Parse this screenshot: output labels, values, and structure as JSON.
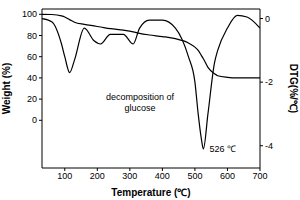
{
  "chart_data": {
    "type": "line",
    "x_label": "Temperature (℃)",
    "y_label": "Weight (%)",
    "y2_label": "DTG(%/℃)",
    "annotations": [
      "decomposition of glucose",
      "526 ℃"
    ],
    "x": [
      30,
      60,
      90,
      100,
      115,
      130,
      160,
      190,
      210,
      240,
      280,
      310,
      330,
      360,
      400,
      440,
      480,
      500,
      510,
      520,
      526,
      540,
      560,
      570,
      600,
      630,
      660,
      700
    ],
    "series": [
      {
        "color": "#000000",
        "line_style": "solid",
        "values": [
          100,
          99.8,
          98.5,
          97.5,
          95,
          92.5,
          90.5,
          89,
          88,
          86.5,
          85,
          83.5,
          82,
          80.5,
          79,
          77,
          73,
          69,
          66,
          61,
          58,
          50,
          44,
          42,
          40.5,
          40,
          40,
          40
        ]
      },
      {
        "color": "#000000",
        "line_style": "solid",
        "axis": "y2",
        "values": [
          0,
          -0.1,
          -0.8,
          -1.2,
          -1.7,
          -1.3,
          -0.3,
          -0.7,
          -0.8,
          -0.5,
          -0.5,
          -0.8,
          -0.3,
          -0.05,
          -0.05,
          -0.3,
          -1.2,
          -2,
          -3,
          -3.8,
          -4.1,
          -3,
          -1.4,
          -1,
          -0.3,
          0.1,
          0.05,
          -0.3
        ]
      }
    ],
    "xlim": [
      30,
      700
    ],
    "xticks": [
      100,
      200,
      300,
      400,
      500,
      600,
      700
    ],
    "ylim": [
      -45,
      105
    ],
    "yticks": [
      0,
      20,
      40,
      60,
      80,
      100
    ],
    "y2lim": [
      -4.7,
      0.3
    ],
    "y2ticks": [
      0,
      -2,
      -4
    ],
    "grid": false
  }
}
